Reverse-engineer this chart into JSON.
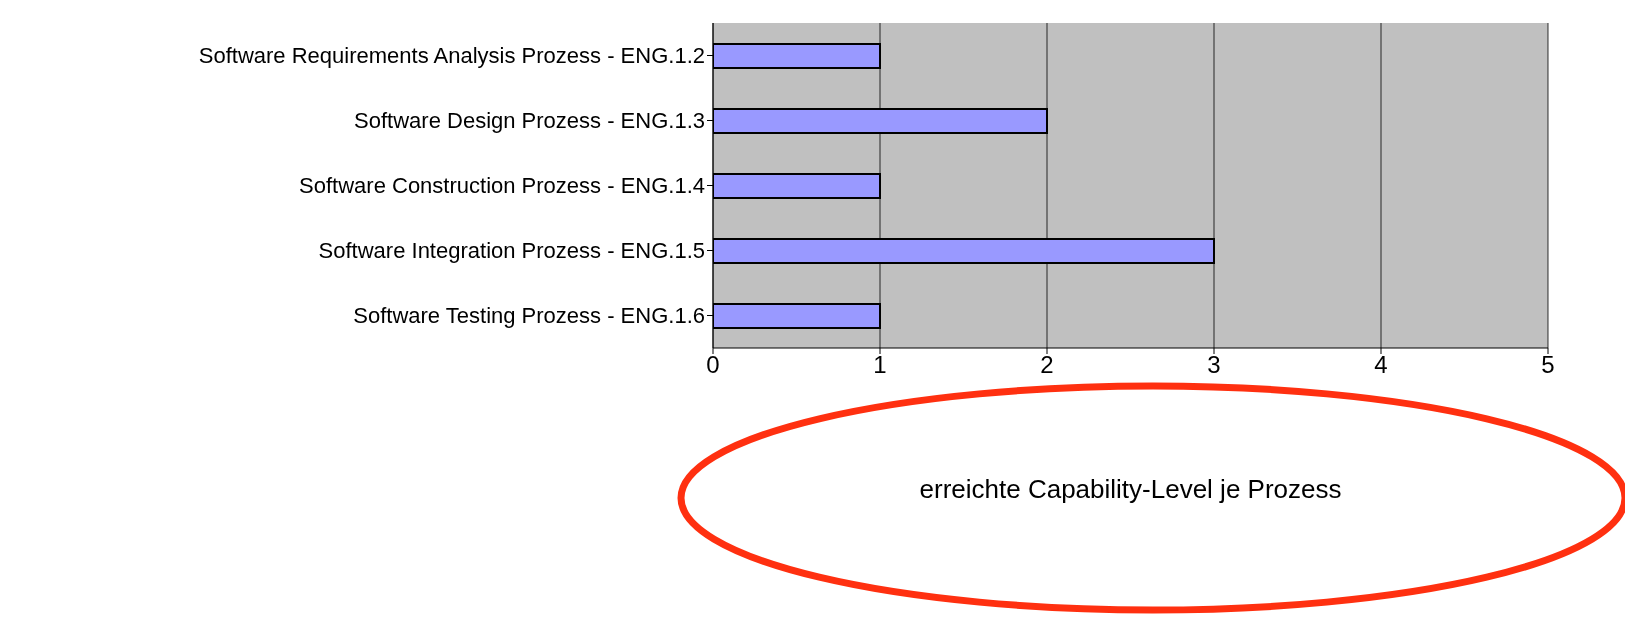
{
  "chart_data": {
    "type": "bar",
    "orientation": "horizontal",
    "xlabel": "erreichte Capability-Level je Prozess",
    "categories": [
      "Software Requirements Analysis Prozess - ENG.1.2",
      "Software Design Prozess - ENG.1.3",
      "Software Construction Prozess - ENG.1.4",
      "Software Integration Prozess - ENG.1.5",
      "Software Testing Prozess - ENG.1.6"
    ],
    "values": [
      1,
      2,
      1,
      3,
      1
    ],
    "color": "#9999ff",
    "xlim": [
      0,
      5
    ],
    "xticks": [
      0,
      1,
      2,
      3,
      4,
      5
    ],
    "grid": "x"
  }
}
